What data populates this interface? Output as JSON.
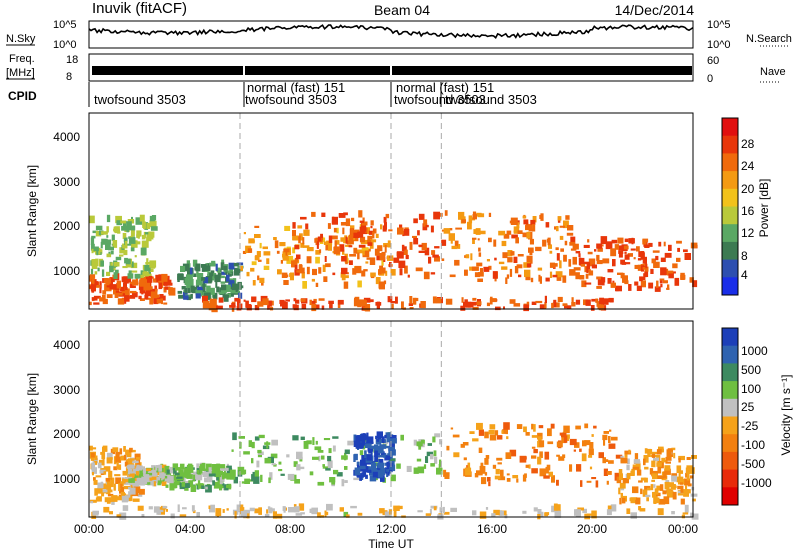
{
  "header": {
    "station": "Inuvik (fitACF)",
    "beam": "Beam 04",
    "date": "14/Dec/2014"
  },
  "summary": {
    "nsky_label": "N.Sky",
    "nsky_ticks": [
      "10^5",
      "10^0"
    ],
    "nsearch_label": "N.Search",
    "nsearch_ticks": [
      "10^5",
      "10^0"
    ],
    "freq_label_1": "Freq.",
    "freq_label_2": "[MHz]",
    "freq_ticks": [
      "18",
      "8"
    ],
    "nave_label": "Nave",
    "nave_ticks": [
      "60",
      "0"
    ],
    "cpid_label": "CPID",
    "cpid_segments": [
      {
        "text": "twofsound 3503",
        "start": 0.0,
        "end": 6.0
      },
      {
        "text": "normal (fast) 151",
        "start": 6.0,
        "end": 12.0
      },
      {
        "text": "twofsound 3503",
        "start": 6.0,
        "end": 12.0
      },
      {
        "text": "normal (fast) 151",
        "start": 12.0,
        "end": 14.0
      },
      {
        "text": "twofsound 3503",
        "start": 12.0,
        "end": 14.0
      },
      {
        "text": "twofsound 3503",
        "start": 14.0,
        "end": 24.0
      }
    ]
  },
  "axes": {
    "ylabel": "Slant Range [km]",
    "xlabel": "Time UT",
    "xticks": [
      "00:00",
      "04:00",
      "08:00",
      "12:00",
      "16:00",
      "20:00",
      "00:00"
    ],
    "yticks": [
      "1000",
      "2000",
      "3000",
      "4000"
    ]
  },
  "colorbars": {
    "power": {
      "label": "Power [dB]",
      "ticks": [
        "4",
        "8",
        "12",
        "16",
        "20",
        "24",
        "28"
      ],
      "colors": [
        "#1a2ee8",
        "#2d4fb0",
        "#3c7a52",
        "#5aa864",
        "#b9c93a",
        "#f2c21b",
        "#f49a12",
        "#f06a0c",
        "#e8360a",
        "#e10f0f"
      ]
    },
    "velocity": {
      "label": "Velocity [m s⁻¹]",
      "ticks": [
        "1000",
        "500",
        "100",
        "25",
        "-25",
        "-100",
        "-500",
        "-1000"
      ],
      "colors": [
        "#1c3fb8",
        "#2f63b0",
        "#3d8a60",
        "#6fbf40",
        "#c0c0c0",
        "#f5a21a",
        "#f3800f",
        "#ee5a0c",
        "#e82a0a",
        "#e00000"
      ]
    }
  },
  "chart_data": [
    {
      "type": "heatmap",
      "title": "Power [dB]",
      "xlabel": "Time UT",
      "ylabel": "Slant Range [km]",
      "xlim": [
        0,
        24
      ],
      "ylim": [
        180,
        4500
      ],
      "zlim": [
        0,
        30
      ],
      "regions": [
        {
          "t0": 0.0,
          "t1": 3.2,
          "r0": 300,
          "r1": 900,
          "value": 24
        },
        {
          "t0": 0.0,
          "t1": 2.5,
          "r0": 900,
          "r1": 2200,
          "value": 12
        },
        {
          "t0": 3.5,
          "t1": 6.0,
          "r0": 400,
          "r1": 1200,
          "value": 8
        },
        {
          "t0": 6.0,
          "t1": 12.0,
          "r0": 700,
          "r1": 2000,
          "value": 20
        },
        {
          "t0": 8.0,
          "t1": 14.0,
          "r0": 900,
          "r1": 2300,
          "value": 24
        },
        {
          "t0": 14.0,
          "t1": 19.0,
          "r0": 800,
          "r1": 2300,
          "value": 22
        },
        {
          "t0": 19.0,
          "t1": 24.0,
          "r0": 600,
          "r1": 1700,
          "value": 24
        },
        {
          "t0": 4.0,
          "t1": 21.0,
          "r0": 180,
          "r1": 400,
          "value": 24
        }
      ]
    },
    {
      "type": "heatmap",
      "title": "Velocity [m s⁻¹]",
      "xlabel": "Time UT",
      "ylabel": "Slant Range [km]",
      "xlim": [
        0,
        24
      ],
      "ylim": [
        180,
        4500
      ],
      "zlim": [
        -1000,
        1000
      ],
      "regions": [
        {
          "t0": 0.0,
          "t1": 2.0,
          "r0": 500,
          "r1": 1700,
          "value": -100
        },
        {
          "t0": 1.5,
          "t1": 3.0,
          "r0": 900,
          "r1": 1300,
          "value": 100
        },
        {
          "t0": 3.0,
          "t1": 5.5,
          "r0": 800,
          "r1": 1300,
          "value": 300
        },
        {
          "t0": 5.5,
          "t1": 14.0,
          "r0": 900,
          "r1": 2000,
          "value": 300
        },
        {
          "t0": 10.5,
          "t1": 12.0,
          "r0": 1000,
          "r1": 2000,
          "value": 800
        },
        {
          "t0": 14.0,
          "t1": 21.0,
          "r0": 900,
          "r1": 2200,
          "value": -300
        },
        {
          "t0": 21.0,
          "t1": 24.0,
          "r0": 500,
          "r1": 1700,
          "value": -150
        },
        {
          "t0": 0.0,
          "t1": 24.0,
          "r0": 180,
          "r1": 400,
          "value": 25
        }
      ]
    }
  ]
}
